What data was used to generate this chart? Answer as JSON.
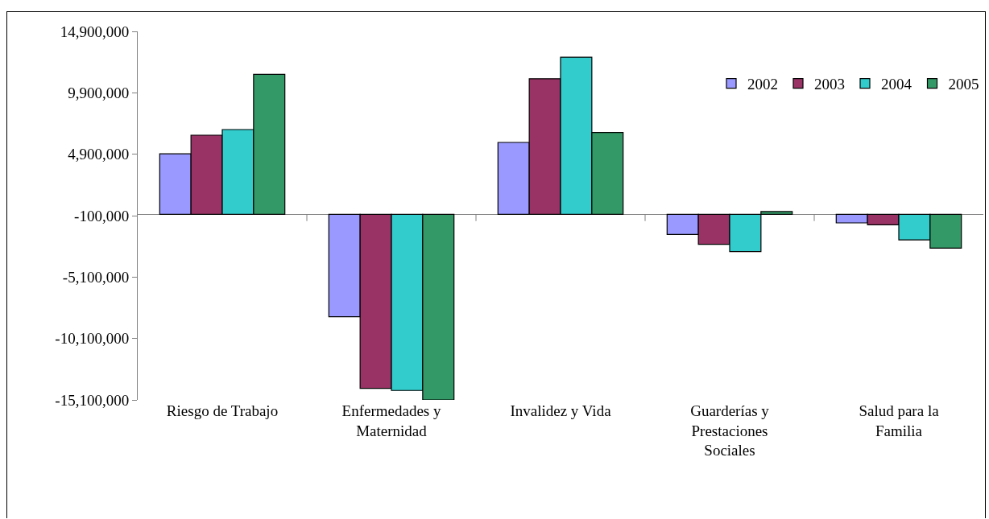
{
  "chart_data": {
    "type": "bar",
    "categories": [
      "Riesgo de Trabajo",
      "Enfermedades y Maternidad",
      "Invalidez y Vida",
      "Guarderías y Prestaciones Sociales",
      "Salud para la Familia"
    ],
    "series": [
      {
        "name": "2002",
        "color": "#9999ff",
        "values": [
          4930000,
          -8330000,
          5860000,
          -1630000,
          -690000
        ]
      },
      {
        "name": "2003",
        "color": "#993366",
        "values": [
          6450000,
          -14160000,
          11050000,
          -2440000,
          -840000
        ]
      },
      {
        "name": "2004",
        "color": "#33cccc",
        "values": [
          6910000,
          -14330000,
          12800000,
          -3020000,
          -2070000
        ]
      },
      {
        "name": "2005",
        "color": "#339966",
        "values": [
          11410000,
          -15100000,
          6670000,
          230000,
          -2750000
        ]
      }
    ],
    "ylim": [
      -15100000,
      14900000
    ],
    "yticks": [
      {
        "value": -15100000,
        "label": "-15,100,000"
      },
      {
        "value": -10100000,
        "label": "-10,100,000"
      },
      {
        "value": -5100000,
        "label": "-5,100,000"
      },
      {
        "value": -100000,
        "label": "-100,000"
      },
      {
        "value": 4900000,
        "label": "4,900,000"
      },
      {
        "value": 9900000,
        "label": "9,900,000"
      },
      {
        "value": 14900000,
        "label": "14,900,000"
      }
    ],
    "legend": "top right"
  }
}
